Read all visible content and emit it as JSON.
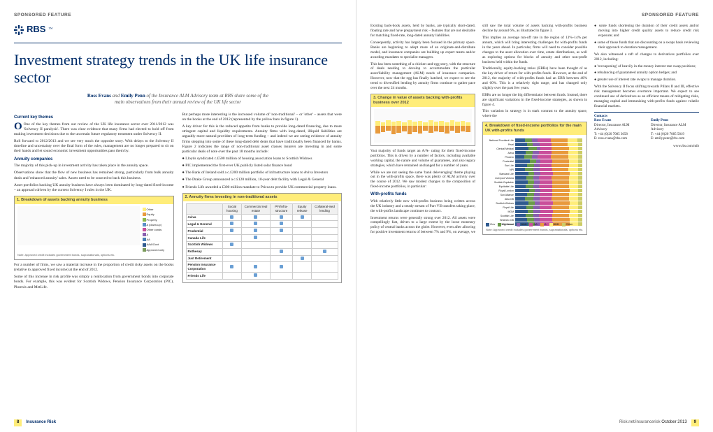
{
  "sponsor_label": "SPONSORED FEATURE",
  "logo_text": "RBS",
  "headline": "Investment strategy trends in the UK life insurance sector",
  "byline_html": "Ross Evans and Emily Penn of the Insurance ALM Advisory team at RBS share some of the main observations from their annual review of the UK life sector",
  "authors": [
    "Ross Evans",
    "Emily Penn"
  ],
  "left": {
    "s1_title": "Current key themes",
    "s1": "One of the key themes from our review of the UK life insurance sector over 2011/2012 was 'Solvency II paralysis'. There was clear evidence that many firms had elected to hold off from making investment decisions due to the uncertain future regulatory treatment under Solvency II.",
    "s1b": "Roll forward to 2012/2013 and we see very much the opposite story. With delays to the Solvency II timeline and uncertainty over the final form of the rules, management are no longer prepared to sit on their hands and let sound economic investment opportunities pass them by.",
    "s2_title": "Annuity companies",
    "s2": "The majority of this pick-up in investment activity has taken place in the annuity space.",
    "s2b": "Observations show that the flow of new business has remained strong, particularly from bulk annuity deals and 'enhanced annuity' sales. Assets need to be sourced to back this business.",
    "s2c": "Asset portfolios backing UK annuity business have always been dominated by long-dated fixed-income – an approach driven by the current Solvency I rules in the UK.",
    "s3": "Some of this increase in risk profile was simply a reallocation from government bonds into corporate bonds. For example, this was evident for Scottish Widows, Pension Insurance Corporation (PIC), Phoenix and MetLife.",
    "s3b": "But perhaps more interesting is the increased volume of 'non-traditional' – or 'other' – assets that were on the books at the end of 2012 (represented by the yellow bars in figure 1).",
    "s3c": "A key driver for this is the reduced appetite from banks to provide long-dated financing, due to more stringent capital and liquidity requirements. Annuity firms with long-dated, illiquid liabilities are arguably more natural providers of long-term funding – and indeed we are seeing evidence of annuity firms stepping into some of these long-dated debt deals that have traditionally been financed by banks. Figure 2 indicates the range of non-traditional asset classes insurers are investing in and some particular deals of note over the past 18 months include:",
    "bullets": [
      "Lloyds syndicated c.£500 million of housing association loans to Scottish Widows",
      "PIC implemented the first-ever UK publicly listed solar finance bond",
      "The Bank of Ireland sold a c.£200 million portfolio of infrastructure loans to Aviva Investors",
      "The Drake Group announced a c.£120 million, 10-year debt facility with Legal & General",
      "Friends Life awarded a £300 million mandate to Pricoa to provide UK commercial property loans."
    ],
    "credit_note": "For a number of firms, we saw a material increase in the proportion of credit risky assets on the books (relative to approved fixed income) at the end of 2012."
  },
  "right": {
    "intro": "Existing back-book assets, held by banks, are typically short-dated, floating rate and have prepayment risk – features that are not desirable for matching fixed-rate, long-dated annuity liabilities.",
    "p2": "Consequently, activity has largely been focused in the primary space. Banks are beginning to adopt more of an originate-and-distribute model, and insurance companies are building up expert teams and/or awarding mandates to specialist managers.",
    "p3": "This has been something of a chicken-and-egg story, with the structure of deals needing to develop to accommodate the particular asset/liability management (ALM) needs of insurance companies. However, now that the egg has finally hatched, we expect to see the trend to diversified lending by annuity firms continue to gather pace over the next 24 months.",
    "chart3_after": "Vast majority of funds target an A/A- rating for their fixed-income portfolios. This is driven by a number of factors, including available working capital, the nature and volume of guarantees, and also legacy strategies, which have remained unchanged for a number of years.",
    "p4": "While we are not seeing the same 'bank deleveraging' theme playing out in the with-profits space, there was plenty of ALM activity over the course of 2012. We saw modest changes to the composition of fixed-income portfolios, in particular:",
    "wp_bullets": [
      "some funds shortening the duration of their credit assets and/or moving into higher credit quality assets to reduce credit risk exposure; and",
      "some of those funds that are discounting on a swaps basis reviewing their approach to duration management."
    ],
    "wp_title": "With-profits funds",
    "wp_p": "With relatively little new with-profits business being written across the UK industry and a steady stream of Part VII transfers taking place, the with-profits landscape continues to contract.",
    "wp_p2": "Investment returns were generally strong over 2012. All assets were compellingly fast, driven to a large extent by the loose monetary policy of central banks across the globe. However, even after allowing for positive investment returns of between 7% and 9%, on average, we still saw the total volume of assets backing with-profits business decline by around 6%, as illustrated in figure 3.",
    "wp_p3": "This implies an average run-off rate in the region of 13%–14% per annum, which will bring interesting challenges for with-profits funds in the years ahead. In particular, firms will need to consider possible changes to the asset allocation over time, estate distributions, as well as exploring options for blocks of annuity and other non-profit business held within the funds.",
    "wp_p4": "Traditionally, equity-backing ratios (EBRs) have been thought of as the key driver of return for with-profits funds. However, at the end of 2012, the majority of with-profits funds had an EBR between 40% and 60%. This is a relatively tight range, and has changed only slightly over the past few years.",
    "wp_p5": "EBRs are no longer the big differentiator between funds. Instead, there are significant variations in the fixed-income strategies, as shown in figure 4.",
    "wp_p6": "This variation in strategy is in stark contrast to the annuity space, where the",
    "deriv": "We also witnessed a raft of changes to derivatives portfolios over 2012, including:",
    "deriv_bullets": [
      "'recouponing' of heavily in-the-money interest rate swap positions;",
      "rebalancing of guaranteed annuity option hedges; and",
      "greater use of interest rate swaps to manage duration."
    ],
    "solv": "With the Solvency II focus shifting towards Pillars II and III, effective risk management becomes evermore important. We expect to see continued use of derivatives as an efficient means of mitigating risks, managing capital and immunising with-profits funds against volatile financial markets.",
    "contacts_title": "Contacts",
    "contacts": [
      {
        "name": "Ross Evans",
        "title": "Director, Insurance ALM Advisory",
        "tel": "T: +44 (0)20 7085 3658",
        "email": "E: ross.evans@rbs.com"
      },
      {
        "name": "Emily Penn",
        "title": "Director, Insurance ALM Advisory",
        "tel": "T: +44 (0)20 7085 5819",
        "email": "E: emily.penn@rbs.com"
      }
    ],
    "web": "www.rbs.com/mib"
  },
  "chart1": {
    "title": "1. Breakdown of assets backing annuity business",
    "legend": [
      {
        "label": "Other",
        "color": "#ffed7a"
      },
      {
        "label": "Equity",
        "color": "#e89a3c"
      },
      {
        "label": "Property",
        "color": "#8bb84a"
      },
      {
        "label": "A (down-up)",
        "color": "#5a8fc7"
      },
      {
        "label": "Other conds",
        "color": "#c94f9a"
      },
      {
        "label": "A",
        "color": "#8a5fb0"
      },
      {
        "label": "AA",
        "color": "#4a7fb5"
      },
      {
        "label": "AAA/Govt",
        "color": "#2f5a8f"
      },
      {
        "label": "Approved only",
        "color": "#7a9b5a"
      }
    ],
    "note": "Note: Approved credit includes government bonds, supranationals, options etc.",
    "bars": [
      [
        20,
        12,
        18,
        10,
        8,
        12,
        8,
        6,
        6
      ],
      [
        18,
        10,
        20,
        12,
        10,
        10,
        8,
        6,
        6
      ],
      [
        22,
        14,
        16,
        10,
        8,
        10,
        8,
        6,
        6
      ],
      [
        20,
        12,
        18,
        10,
        10,
        10,
        8,
        6,
        6
      ],
      [
        24,
        12,
        14,
        10,
        8,
        12,
        8,
        6,
        6
      ],
      [
        20,
        14,
        18,
        10,
        8,
        10,
        8,
        6,
        6
      ],
      [
        22,
        10,
        18,
        12,
        8,
        10,
        8,
        6,
        6
      ],
      [
        18,
        12,
        20,
        10,
        10,
        10,
        8,
        6,
        6
      ],
      [
        20,
        12,
        18,
        10,
        8,
        12,
        8,
        6,
        6
      ],
      [
        22,
        12,
        16,
        10,
        10,
        10,
        8,
        6,
        6
      ],
      [
        20,
        14,
        18,
        10,
        8,
        10,
        8,
        6,
        6
      ],
      [
        24,
        10,
        16,
        12,
        8,
        10,
        8,
        6,
        6
      ],
      [
        18,
        14,
        20,
        10,
        8,
        10,
        8,
        6,
        6
      ],
      [
        20,
        12,
        18,
        10,
        10,
        10,
        8,
        6,
        6
      ],
      [
        22,
        12,
        16,
        12,
        8,
        10,
        8,
        6,
        6
      ],
      [
        20,
        12,
        18,
        10,
        8,
        12,
        8,
        6,
        6
      ]
    ],
    "colors": [
      "#2f5a8f",
      "#4a7fb5",
      "#8a5fb0",
      "#c94f9a",
      "#5a8fc7",
      "#8bb84a",
      "#e89a3c",
      "#ffed7a",
      "#7a9b5a"
    ]
  },
  "chart2": {
    "title": "2. Annuity firms investing in non-traditional assets",
    "cols": [
      "Social housing",
      "Commercial real estate",
      "PFI/infra-structure",
      "Equity release",
      "Collateral-ised lending"
    ],
    "rows": [
      "Aviva",
      "Legal & General",
      "Prudential",
      "Canada Life",
      "Scottish Widows",
      "Rothesay",
      "Just Retirement",
      "Pension Insurance Corporation",
      "Friends Life"
    ],
    "matrix": [
      [
        1,
        1,
        1,
        1,
        0
      ],
      [
        1,
        1,
        1,
        0,
        0
      ],
      [
        1,
        1,
        1,
        0,
        0
      ],
      [
        0,
        1,
        0,
        0,
        0
      ],
      [
        1,
        0,
        0,
        0,
        0
      ],
      [
        0,
        0,
        1,
        0,
        1
      ],
      [
        0,
        0,
        0,
        1,
        0
      ],
      [
        1,
        1,
        1,
        0,
        0
      ],
      [
        0,
        1,
        0,
        0,
        0
      ]
    ]
  },
  "chart3": {
    "title": "3. Change in value of assets backing with-profits business over 2012",
    "bars": [
      {
        "v": 8,
        "d": -12
      },
      {
        "v": 6,
        "d": -10
      },
      {
        "v": 9,
        "d": -8
      },
      {
        "v": 7,
        "d": -14
      },
      {
        "v": 8,
        "d": -11
      },
      {
        "v": 6,
        "d": -9
      },
      {
        "v": 9,
        "d": -13
      },
      {
        "v": 7,
        "d": -10
      },
      {
        "v": 8,
        "d": -12
      },
      {
        "v": 6,
        "d": -8
      },
      {
        "v": 9,
        "d": -11
      },
      {
        "v": 7,
        "d": -9
      },
      {
        "v": 8,
        "d": -10
      },
      {
        "v": 6,
        "d": -12
      },
      {
        "v": 9,
        "d": -8
      },
      {
        "v": 7,
        "d": -11
      },
      {
        "v": 8,
        "d": -9
      },
      {
        "v": 6,
        "d": -10
      }
    ],
    "color_up": "#ffed7a",
    "color_down": "#e89a3c"
  },
  "chart4": {
    "title": "4. Breakdown of fixed-income portfolios for the main UK with-profits funds",
    "rows": [
      "National Provident Life",
      "Pearl",
      "Clerical Medical",
      "Aviva",
      "Phoenix",
      "Prudential",
      "Sun Life",
      "NPI",
      "Standard Life",
      "Liverpool Victoria",
      "Scottish Equitable",
      "Equitable Life",
      "Royal London",
      "Sun Alliance",
      "Alba OB",
      "Scottish Widows",
      "Royal Life",
      "MGM",
      "Scottish Life",
      "Britannic OB",
      "NFU Mutual"
    ],
    "legend": [
      {
        "label": "Gov",
        "color": "#2f5a8f"
      },
      {
        "label": "Approved",
        "color": "#6a9b4a"
      },
      {
        "label": "AAA",
        "color": "#8a5fb0"
      },
      {
        "label": "AA",
        "color": "#c94f9a"
      },
      {
        "label": "A",
        "color": "#e89a3c"
      },
      {
        "label": "BBB",
        "color": "#ffed7a"
      },
      {
        "label": "Other",
        "color": "#cccc66"
      }
    ],
    "note": "Note: Approved credit includes government bonds, supranationals, options etc.",
    "segments": [
      [
        15,
        10,
        8,
        20,
        25,
        15,
        7
      ],
      [
        18,
        8,
        10,
        18,
        24,
        16,
        6
      ],
      [
        20,
        12,
        6,
        16,
        26,
        14,
        6
      ],
      [
        16,
        10,
        9,
        19,
        25,
        15,
        6
      ],
      [
        14,
        11,
        8,
        20,
        26,
        15,
        6
      ],
      [
        22,
        9,
        7,
        17,
        25,
        14,
        6
      ],
      [
        18,
        10,
        8,
        18,
        26,
        14,
        6
      ],
      [
        15,
        12,
        9,
        19,
        24,
        15,
        6
      ],
      [
        20,
        8,
        10,
        18,
        25,
        13,
        6
      ],
      [
        17,
        10,
        8,
        19,
        26,
        14,
        6
      ],
      [
        19,
        9,
        9,
        18,
        25,
        14,
        6
      ],
      [
        16,
        11,
        8,
        20,
        25,
        14,
        6
      ],
      [
        21,
        8,
        9,
        17,
        26,
        13,
        6
      ],
      [
        18,
        10,
        8,
        19,
        25,
        14,
        6
      ],
      [
        15,
        12,
        9,
        18,
        26,
        14,
        6
      ],
      [
        20,
        9,
        8,
        19,
        25,
        13,
        6
      ],
      [
        17,
        10,
        9,
        18,
        26,
        14,
        6
      ],
      [
        19,
        8,
        10,
        19,
        25,
        13,
        6
      ],
      [
        16,
        11,
        8,
        20,
        25,
        14,
        6
      ],
      [
        18,
        10,
        9,
        18,
        26,
        13,
        6
      ],
      [
        20,
        9,
        8,
        19,
        25,
        13,
        6
      ]
    ]
  },
  "footer": {
    "left_page": "8",
    "right_page": "9",
    "pub": "Insurance Risk",
    "site": "Risk.net/insurancerisk",
    "date": "October 2013"
  }
}
